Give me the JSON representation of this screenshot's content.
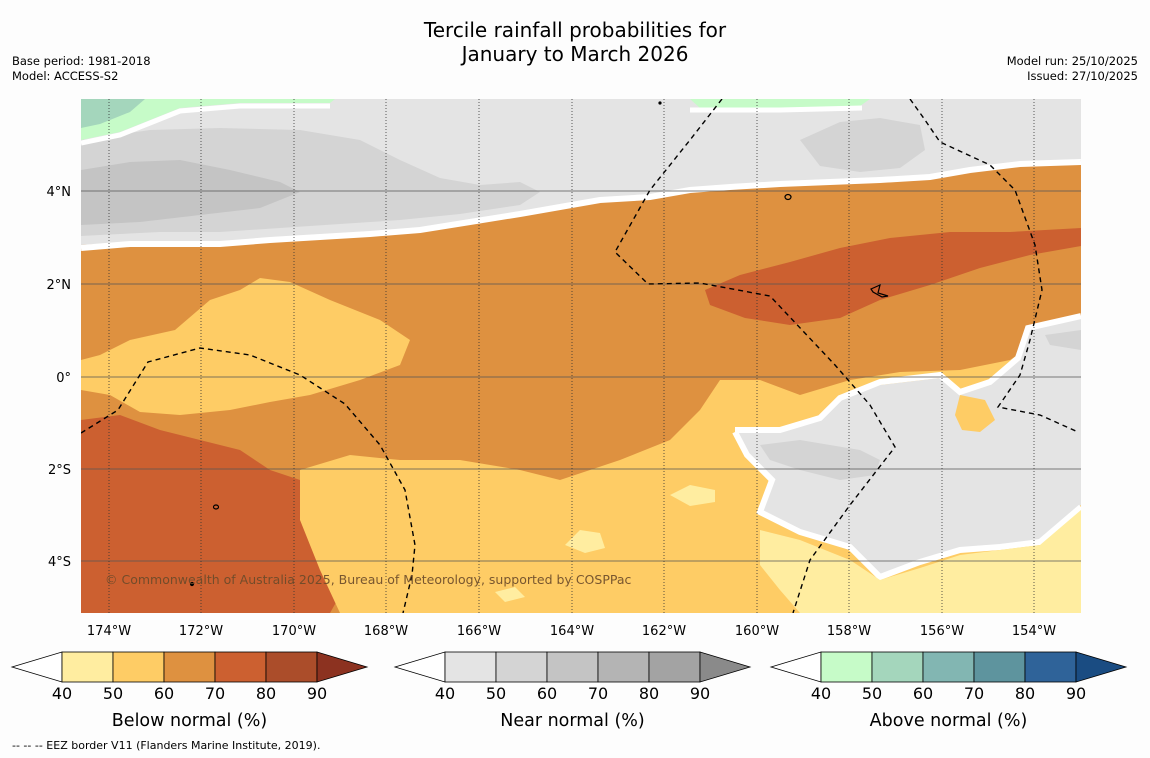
{
  "header": {
    "title_line1": "Tercile rainfall probabilities for",
    "title_line2": "January to March 2026",
    "base_period": "Base period: 1981-2018",
    "model": "Model: ACCESS-S2",
    "model_run": "Model run: 25/10/2025",
    "issued": "Issued: 27/10/2025"
  },
  "map": {
    "copyright": "© Commonwealth of Australia 2025, Bureau of Meteorology, supported by COSPPac",
    "lat_labels": [
      "4°N",
      "2°N",
      "0°",
      "2°S",
      "4°S"
    ],
    "lon_labels": [
      "174°W",
      "172°W",
      "170°W",
      "168°W",
      "166°W",
      "164°W",
      "162°W",
      "160°W",
      "158°W",
      "156°W",
      "154°W"
    ]
  },
  "colorbars": [
    {
      "title": "Below normal (%)",
      "ticks": [
        "40",
        "50",
        "60",
        "70",
        "80",
        "90"
      ],
      "colors": [
        "#ffeda0",
        "#fecc65",
        "#de9140",
        "#cc6030",
        "#ab4d2a",
        "#8c3220"
      ]
    },
    {
      "title": "Near normal (%)",
      "ticks": [
        "40",
        "50",
        "60",
        "70",
        "80",
        "90"
      ],
      "colors": [
        "#e4e4e4",
        "#d4d4d4",
        "#c4c4c4",
        "#b4b4b4",
        "#a3a3a3",
        "#8a8a8a"
      ]
    },
    {
      "title": "Above normal (%)",
      "ticks": [
        "40",
        "50",
        "60",
        "70",
        "80",
        "90"
      ],
      "colors": [
        "#c6fbc8",
        "#a4d6bc",
        "#82b6b2",
        "#5e949e",
        "#2f6399",
        "#1a4c82"
      ]
    }
  ],
  "footnote": "--  --  -- EEZ border V11 (Flanders Marine Institute, 2019)."
}
